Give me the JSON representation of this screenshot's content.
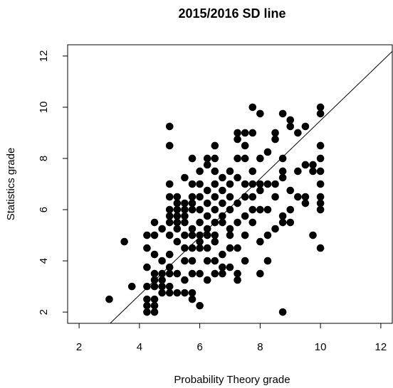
{
  "chart_data": {
    "type": "scatter",
    "title": "2015/2016 SD line",
    "x_label": "Probability Theory grade",
    "y_label": "Statistics grade",
    "color": "#000000",
    "xlim": [
      1.62,
      12.38
    ],
    "ylim": [
      1.56,
      12.44
    ],
    "xticks": [
      2,
      4,
      6,
      8,
      10,
      12
    ],
    "yticks": [
      2,
      4,
      6,
      8,
      10,
      12
    ],
    "sd_line": {
      "slope": 1.136,
      "intercept": -1.88
    },
    "x": [
      3,
      3.5,
      3.75,
      4.25,
      4.25,
      4.5,
      4.5,
      4.5,
      4.25,
      4.25,
      4.25,
      4.25,
      4.25,
      4.5,
      4.5,
      4.5,
      4.5,
      4.5,
      4.5,
      4.75,
      4.75,
      4.75,
      4.75,
      4.75,
      4.75,
      5,
      5,
      5,
      5,
      5,
      5,
      5,
      5,
      5,
      5,
      5,
      5,
      5,
      5.25,
      5.25,
      5.25,
      5.25,
      5.25,
      5.25,
      5.25,
      5.25,
      5.25,
      5.5,
      5.5,
      5.5,
      5.5,
      5.5,
      5.5,
      5.5,
      5.5,
      5.5,
      5.5,
      5.75,
      5.75,
      5.75,
      5.75,
      5.75,
      5.75,
      5.75,
      5.75,
      5.75,
      5.75,
      5.75,
      5.75,
      6,
      6,
      6,
      6,
      6,
      6,
      6,
      6,
      6,
      6,
      6.25,
      6.25,
      6.25,
      6.25,
      6.25,
      6.25,
      6.25,
      6.25,
      6.25,
      6.25,
      6.5,
      6.5,
      6.5,
      6.5,
      6.5,
      6.5,
      6.5,
      6.5,
      6.5,
      6.5,
      6.5,
      6.75,
      6.75,
      6.75,
      6.75,
      6.75,
      6.75,
      6.75,
      6.75,
      7,
      7,
      7,
      7,
      7,
      7,
      7,
      7,
      7.25,
      7.25,
      7.25,
      7.25,
      7.25,
      7.25,
      7.25,
      7.25,
      7.25,
      7.5,
      7.5,
      7.5,
      7.5,
      7.5,
      7.5,
      7.5,
      7.5,
      7.75,
      7.75,
      7.75,
      7.75,
      7.75,
      7.75,
      7.75,
      8,
      8,
      8,
      8,
      8,
      8,
      8,
      8.25,
      8.25,
      8.25,
      8.25,
      8.25,
      8.5,
      8.5,
      8.5,
      8.5,
      8.5,
      8.75,
      8.75,
      8.75,
      8.75,
      8.75,
      8.75,
      8.75,
      9,
      9,
      9,
      9,
      9,
      9.25,
      9.25,
      9.25,
      9.5,
      9.5,
      9.5,
      9.5,
      9.75,
      9.75,
      9.75,
      10,
      10,
      10,
      10,
      10,
      10,
      10,
      10,
      10,
      10
    ],
    "values": [
      2.5,
      4.75,
      3,
      2,
      2.25,
      2,
      2.25,
      2.5,
      2.5,
      3,
      3.75,
      4.5,
      5,
      5,
      5.5,
      4.25,
      3.5,
      3.25,
      3,
      3.5,
      3.25,
      3,
      2.75,
      5.25,
      4,
      2.75,
      3,
      3.5,
      3.75,
      4.25,
      5,
      5.5,
      5.75,
      6,
      6.5,
      7,
      8.5,
      9.25,
      2.75,
      3.5,
      4.75,
      5.25,
      5.5,
      5.75,
      6,
      6.25,
      6.5,
      2.75,
      3.25,
      4,
      4.5,
      5,
      5.5,
      5.75,
      6,
      6.25,
      7.25,
      2.5,
      2.75,
      3.5,
      4,
      4.5,
      5,
      5.25,
      6,
      6.25,
      6.5,
      7,
      8,
      2.25,
      3.5,
      4.5,
      4.75,
      5,
      5.5,
      6,
      6.5,
      7,
      7.5,
      3.25,
      4,
      4.5,
      5,
      5.25,
      5.75,
      6.25,
      6.75,
      7.75,
      8,
      3.5,
      4,
      4.75,
      5,
      5.5,
      6,
      6.5,
      7,
      7.5,
      8.5,
      8,
      3.5,
      3.75,
      4.25,
      5.5,
      5.75,
      6.25,
      6.75,
      7.25,
      3.75,
      4.5,
      5,
      5.25,
      6,
      6.5,
      7,
      7.5,
      3.25,
      3.5,
      4.5,
      5.5,
      6.25,
      7.25,
      8,
      8.75,
      9,
      4,
      5,
      5.75,
      6.5,
      7,
      8,
      8.5,
      9,
      5.5,
      6,
      6.5,
      7,
      7.5,
      9,
      10,
      3.5,
      4.75,
      6,
      6.75,
      7,
      8,
      9.75,
      4,
      5,
      6,
      7,
      8.25,
      5.25,
      6.5,
      7,
      8.75,
      9,
      2,
      5.5,
      5.75,
      7.25,
      7.5,
      8,
      9.75,
      5.5,
      6,
      6.75,
      9.5,
      9.25,
      6.5,
      7.5,
      9,
      6.25,
      6.5,
      7.75,
      9.25,
      5,
      7.5,
      7.75,
      4.5,
      6,
      6.25,
      6.5,
      7,
      7.5,
      8,
      8.5,
      9.75,
      10
    ]
  }
}
